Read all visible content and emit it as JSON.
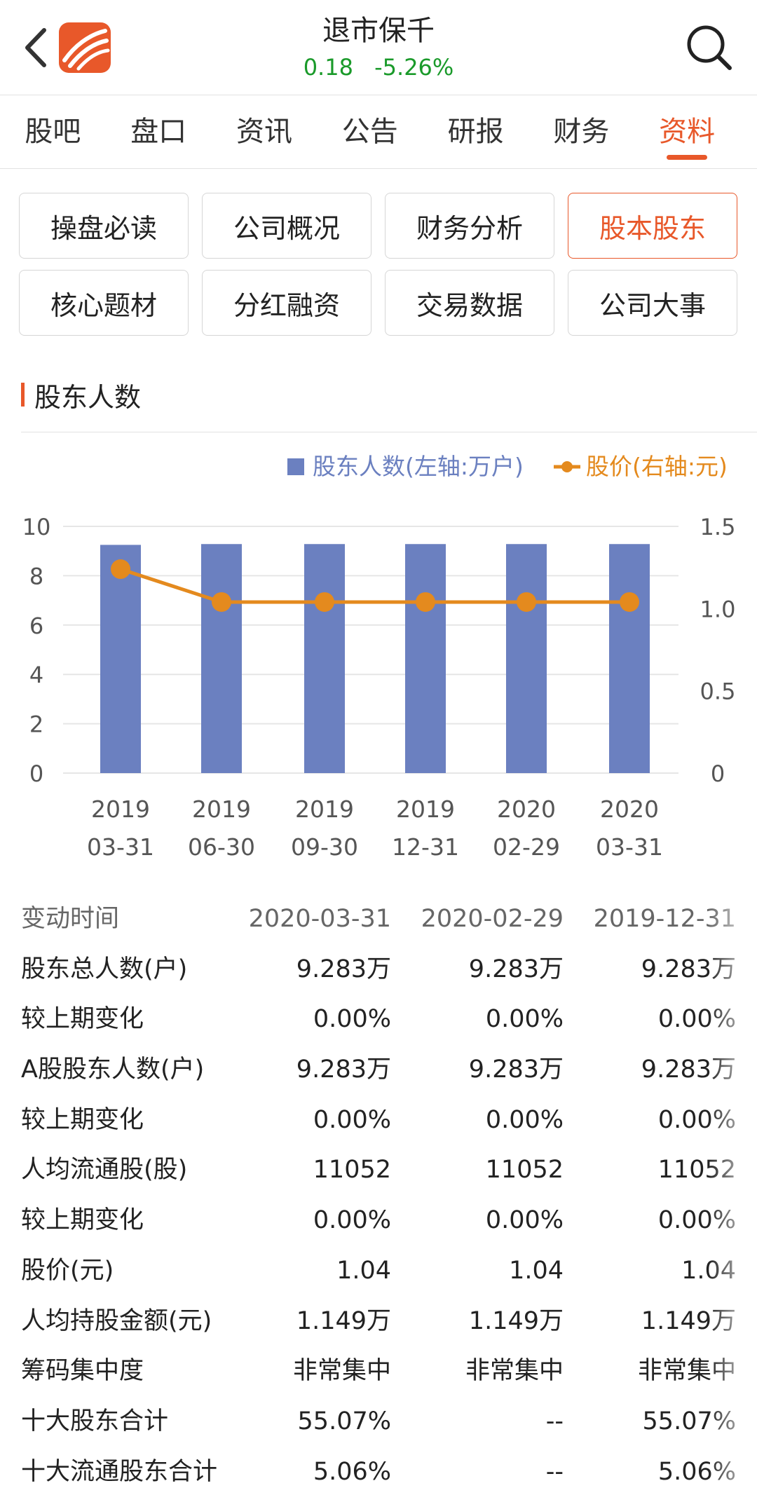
{
  "header": {
    "title": "退市保千",
    "price": "0.18",
    "change": "-5.26%"
  },
  "tabs": [
    {
      "label": "股吧"
    },
    {
      "label": "盘口"
    },
    {
      "label": "资讯"
    },
    {
      "label": "公告"
    },
    {
      "label": "研报"
    },
    {
      "label": "财务"
    },
    {
      "label": "资料"
    }
  ],
  "active_tab": "资料",
  "sub_buttons": [
    {
      "label": "操盘必读"
    },
    {
      "label": "公司概况"
    },
    {
      "label": "财务分析"
    },
    {
      "label": "股本股东"
    },
    {
      "label": "核心题材"
    },
    {
      "label": "分红融资"
    },
    {
      "label": "交易数据"
    },
    {
      "label": "公司大事"
    }
  ],
  "active_sub_button": "股本股东",
  "section_title": "股东人数",
  "colors": {
    "accent": "#e8582a",
    "up_down": "#1a9a2a",
    "bar": "#6b80c0",
    "line": "#e48a1e"
  },
  "chart_data": {
    "type": "bar",
    "categories": [
      [
        "2019",
        "03-31"
      ],
      [
        "2019",
        "06-30"
      ],
      [
        "2019",
        "09-30"
      ],
      [
        "2019",
        "12-31"
      ],
      [
        "2020",
        "02-29"
      ],
      [
        "2020",
        "03-31"
      ]
    ],
    "series": [
      {
        "name": "股东人数(左轴:万户)",
        "type": "bar",
        "axis": "left",
        "values": [
          9.25,
          9.283,
          9.283,
          9.283,
          9.283,
          9.283
        ]
      },
      {
        "name": "股价(右轴:元)",
        "type": "line",
        "axis": "right",
        "values": [
          1.24,
          1.04,
          1.04,
          1.04,
          1.04,
          1.04
        ]
      }
    ],
    "left_axis": {
      "ylim": [
        0,
        10
      ],
      "ticks": [
        "0",
        "2",
        "4",
        "6",
        "8",
        "10"
      ]
    },
    "right_axis": {
      "ylim": [
        0,
        1.5
      ],
      "ticks": [
        "0",
        "0.5",
        "1.0",
        "1.5"
      ]
    },
    "legend_position": "top-right",
    "grid": true
  },
  "table": {
    "header": {
      "label": "变动时间",
      "cols": [
        "2020-03-31",
        "2020-02-29",
        "2019-12-31"
      ]
    },
    "rows": [
      {
        "label": "股东总人数(户)",
        "cols": [
          "9.283万",
          "9.283万",
          "9.283万"
        ]
      },
      {
        "label": "较上期变化",
        "cols": [
          "0.00%",
          "0.00%",
          "0.00%"
        ]
      },
      {
        "label": "A股股东人数(户)",
        "cols": [
          "9.283万",
          "9.283万",
          "9.283万"
        ]
      },
      {
        "label": "较上期变化",
        "cols": [
          "0.00%",
          "0.00%",
          "0.00%"
        ]
      },
      {
        "label": "人均流通股(股)",
        "cols": [
          "11052",
          "11052",
          "11052"
        ]
      },
      {
        "label": "较上期变化",
        "cols": [
          "0.00%",
          "0.00%",
          "0.00%"
        ]
      },
      {
        "label": "股价(元)",
        "cols": [
          "1.04",
          "1.04",
          "1.04"
        ]
      },
      {
        "label": "人均持股金额(元)",
        "cols": [
          "1.149万",
          "1.149万",
          "1.149万"
        ]
      },
      {
        "label": "筹码集中度",
        "cols": [
          "非常集中",
          "非常集中",
          "非常集中"
        ]
      },
      {
        "label": "十大股东合计",
        "cols": [
          "55.07%",
          "--",
          "55.07%"
        ]
      },
      {
        "label": "十大流通股东合计",
        "cols": [
          "5.06%",
          "--",
          "5.06%"
        ]
      }
    ]
  }
}
